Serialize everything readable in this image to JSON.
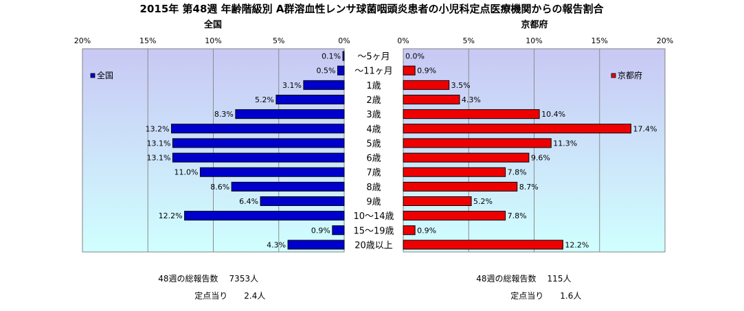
{
  "title": "2015年 第48週 年齢階級別 A群溶血性レンサ球菌咽頭炎患者の小児科定点医療機関からの報告割合",
  "colors": {
    "national_bar": "#0000CC",
    "prefecture_bar": "#EE0000",
    "plot_bg_top": "#C8C8F4",
    "plot_bg_bottom": "#D0FFFF"
  },
  "chart_data": [
    {
      "type": "bar",
      "orientation": "horizontal",
      "direction": "right-to-left",
      "subtitle": "全国",
      "legend": "全国",
      "legend_position": "top-left",
      "xlim": [
        0,
        20
      ],
      "ticks": [
        "20%",
        "15%",
        "10%",
        "5%",
        "0%"
      ],
      "grid": true,
      "categories": [
        "～5ヶ月",
        "～11ヶ月",
        "1歳",
        "2歳",
        "3歳",
        "4歳",
        "5歳",
        "6歳",
        "7歳",
        "8歳",
        "9歳",
        "10～14歳",
        "15～19歳",
        "20歳以上"
      ],
      "values": [
        0.1,
        0.5,
        3.1,
        5.2,
        8.3,
        13.2,
        13.1,
        13.1,
        11.0,
        8.6,
        6.4,
        12.2,
        0.9,
        4.3
      ],
      "value_labels": [
        "0.1%",
        "0.5%",
        "3.1%",
        "5.2%",
        "8.3%",
        "13.2%",
        "13.1%",
        "13.1%",
        "11.0%",
        "8.6%",
        "6.4%",
        "12.2%",
        "0.9%",
        "4.3%"
      ]
    },
    {
      "type": "bar",
      "orientation": "horizontal",
      "direction": "left-to-right",
      "subtitle": "京都府",
      "legend": "京都府",
      "legend_position": "top-right",
      "xlim": [
        0,
        20
      ],
      "ticks": [
        "0%",
        "5%",
        "10%",
        "15%",
        "20%"
      ],
      "grid": true,
      "categories": [
        "～5ヶ月",
        "～11ヶ月",
        "1歳",
        "2歳",
        "3歳",
        "4歳",
        "5歳",
        "6歳",
        "7歳",
        "8歳",
        "9歳",
        "10～14歳",
        "15～19歳",
        "20歳以上"
      ],
      "values": [
        0.0,
        0.9,
        3.5,
        4.3,
        10.4,
        17.4,
        11.3,
        9.6,
        7.8,
        8.7,
        5.2,
        7.8,
        0.9,
        12.2
      ],
      "value_labels": [
        "0.0%",
        "0.9%",
        "3.5%",
        "4.3%",
        "10.4%",
        "17.4%",
        "11.3%",
        "9.6%",
        "7.8%",
        "8.7%",
        "5.2%",
        "7.8%",
        "0.9%",
        "12.2%"
      ]
    }
  ],
  "footer": {
    "national_total_label": "48週の総報告数",
    "national_total_value": "7353人",
    "national_per_label": "定点当り",
    "national_per_value": "2.4人",
    "prefecture_total_label": "48週の総報告数",
    "prefecture_total_value": "115人",
    "prefecture_per_label": "定点当り",
    "prefecture_per_value": "1.6人"
  }
}
